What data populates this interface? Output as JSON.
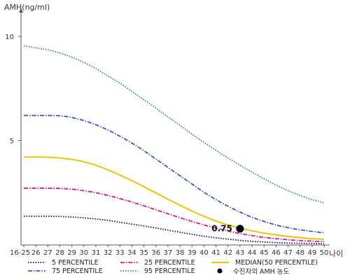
{
  "chart_data": {
    "type": "line",
    "ylabel": "AMH(ng/ml)",
    "xlabel": "나이",
    "x": [
      "16-25",
      "26",
      "27",
      "28",
      "29",
      "30",
      "31",
      "32",
      "33",
      "34",
      "35",
      "36",
      "37",
      "38",
      "39",
      "40",
      "41",
      "42",
      "43",
      "44",
      "45",
      "46",
      "47",
      "48",
      "49",
      "50"
    ],
    "yticks": [
      5,
      10
    ],
    "ylim": [
      0,
      11
    ],
    "grid": false,
    "series": [
      {
        "name": "5 PERCENTILE",
        "color": "#0a0a6e",
        "dash": "dotted",
        "values": [
          1.35,
          1.35,
          1.35,
          1.34,
          1.31,
          1.27,
          1.22,
          1.15,
          1.06,
          0.97,
          0.88,
          0.78,
          0.68,
          0.58,
          0.48,
          0.39,
          0.31,
          0.25,
          0.19,
          0.14,
          0.11,
          0.08,
          0.06,
          0.05,
          0.04,
          0.03
        ]
      },
      {
        "name": "75 PERCENTILE",
        "color": "#3a55c8",
        "dash": "dashdot",
        "values": [
          6.2,
          6.2,
          6.2,
          6.18,
          6.1,
          5.95,
          5.75,
          5.5,
          5.2,
          4.87,
          4.5,
          4.1,
          3.7,
          3.3,
          2.9,
          2.5,
          2.15,
          1.83,
          1.55,
          1.3,
          1.1,
          0.93,
          0.8,
          0.7,
          0.62,
          0.55
        ]
      },
      {
        "name": "25 PERCENTILE",
        "color": "#e0148a",
        "dash": "dashdot",
        "values": [
          2.7,
          2.7,
          2.7,
          2.69,
          2.65,
          2.58,
          2.48,
          2.35,
          2.2,
          2.03,
          1.85,
          1.66,
          1.47,
          1.28,
          1.1,
          0.93,
          0.78,
          0.64,
          0.52,
          0.42,
          0.33,
          0.27,
          0.22,
          0.18,
          0.15,
          0.13
        ]
      },
      {
        "name": "95 PERCENTILE",
        "color": "#2e8b57",
        "dash": "dotted",
        "values": [
          9.55,
          9.45,
          9.35,
          9.2,
          9.0,
          8.75,
          8.45,
          8.1,
          7.75,
          7.35,
          6.95,
          6.55,
          6.13,
          5.72,
          5.3,
          4.9,
          4.52,
          4.15,
          3.8,
          3.47,
          3.15,
          2.85,
          2.58,
          2.35,
          2.15,
          2.0
        ]
      },
      {
        "name": "MEDIAN(50 PERCENTILE)",
        "color": "#f2c400",
        "dash": "solid",
        "values": [
          4.2,
          4.2,
          4.19,
          4.15,
          4.08,
          3.97,
          3.8,
          3.58,
          3.33,
          3.06,
          2.77,
          2.47,
          2.17,
          1.88,
          1.6,
          1.35,
          1.12,
          0.93,
          0.78,
          0.65,
          0.54,
          0.45,
          0.38,
          0.32,
          0.27,
          0.24
        ]
      }
    ],
    "marker": {
      "name": "수진자의 AMH 농도",
      "x": "43",
      "y": 0.75,
      "label": "0.75",
      "color": "#000000"
    },
    "legend_position": "bottom"
  }
}
